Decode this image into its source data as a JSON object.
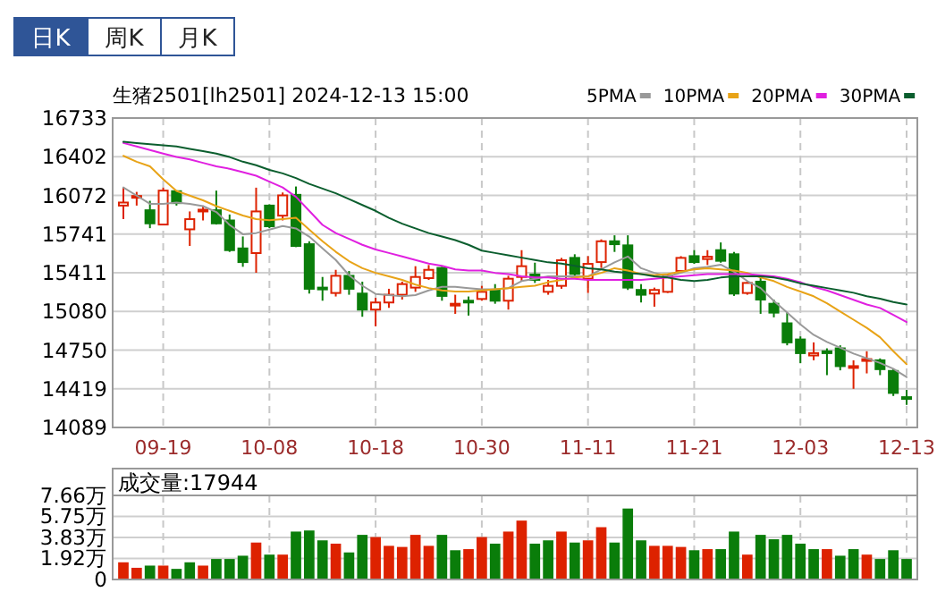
{
  "chart_data": [
    {
      "type": "candlestick",
      "title": "生猪2501[lh2501] 2024-12-13 15:00",
      "annotations": [
        "日K",
        "周K",
        "月K"
      ],
      "categories": [
        null,
        null,
        null,
        "09-19",
        null,
        null,
        null,
        null,
        null,
        null,
        null,
        "10-08",
        null,
        null,
        null,
        null,
        null,
        null,
        null,
        "10-18",
        null,
        null,
        null,
        null,
        null,
        null,
        null,
        "10-30",
        null,
        null,
        null,
        null,
        null,
        null,
        null,
        "11-11",
        null,
        null,
        null,
        null,
        null,
        null,
        null,
        "11-21",
        null,
        null,
        null,
        null,
        null,
        null,
        null,
        "12-03",
        null,
        null,
        null,
        null,
        null,
        null,
        null,
        "12-13"
      ],
      "ohlc": [
        [
          15985,
          16138,
          15869,
          16011
        ],
        [
          16052,
          16102,
          15985,
          16067
        ],
        [
          15945,
          16026,
          15792,
          15833
        ],
        [
          15823,
          16138,
          15818,
          16113
        ],
        [
          16108,
          16113,
          15985,
          16006
        ],
        [
          15782,
          15935,
          15640,
          15869
        ],
        [
          15935,
          15985,
          15858,
          15950
        ],
        [
          15945,
          16113,
          15823,
          15833
        ],
        [
          15858,
          15909,
          15589,
          15604
        ],
        [
          15619,
          15721,
          15462,
          15502
        ],
        [
          15579,
          16138,
          15411,
          15935
        ],
        [
          15985,
          15996,
          15792,
          15808
        ],
        [
          15899,
          16097,
          15858,
          16072
        ],
        [
          16077,
          16148,
          15630,
          15640
        ],
        [
          15655,
          15680,
          15233,
          15274
        ],
        [
          15284,
          15375,
          15172,
          15274
        ],
        [
          15238,
          15436,
          15208,
          15385
        ],
        [
          15385,
          15426,
          15223,
          15274
        ],
        [
          15233,
          15335,
          15035,
          15096
        ],
        [
          15096,
          15197,
          14953,
          15157
        ],
        [
          15157,
          15274,
          15111,
          15223
        ],
        [
          15223,
          15335,
          15182,
          15314
        ],
        [
          15284,
          15467,
          15248,
          15375
        ],
        [
          15365,
          15477,
          15350,
          15436
        ],
        [
          15452,
          15462,
          15172,
          15213
        ],
        [
          15136,
          15223,
          15060,
          15146
        ],
        [
          15172,
          15208,
          15045,
          15162
        ],
        [
          15187,
          15299,
          15172,
          15248
        ],
        [
          15264,
          15314,
          15146,
          15172
        ],
        [
          15172,
          15385,
          15096,
          15360
        ],
        [
          15375,
          15604,
          15335,
          15467
        ],
        [
          15396,
          15497,
          15324,
          15350
        ],
        [
          15248,
          15350,
          15223,
          15299
        ],
        [
          15299,
          15538,
          15274,
          15518
        ],
        [
          15538,
          15569,
          15365,
          15401
        ],
        [
          15360,
          15553,
          15238,
          15487
        ],
        [
          15502,
          15696,
          15452,
          15680
        ],
        [
          15680,
          15731,
          15589,
          15655
        ],
        [
          15645,
          15731,
          15264,
          15284
        ],
        [
          15264,
          15314,
          15157,
          15223
        ],
        [
          15233,
          15284,
          15121,
          15264
        ],
        [
          15248,
          15401,
          15238,
          15385
        ],
        [
          15426,
          15553,
          15416,
          15538
        ],
        [
          15553,
          15604,
          15487,
          15502
        ],
        [
          15528,
          15604,
          15477,
          15548
        ],
        [
          15604,
          15670,
          15497,
          15513
        ],
        [
          15569,
          15589,
          15213,
          15233
        ],
        [
          15238,
          15335,
          15223,
          15324
        ],
        [
          15335,
          15375,
          15060,
          15182
        ],
        [
          15146,
          15182,
          15030,
          15070
        ],
        [
          14979,
          15070,
          14791,
          14816
        ],
        [
          14841,
          14867,
          14638,
          14724
        ],
        [
          14704,
          14816,
          14663,
          14724
        ],
        [
          14740,
          14765,
          14536,
          14724
        ],
        [
          14765,
          14791,
          14577,
          14613
        ],
        [
          14602,
          14663,
          14419,
          14613
        ],
        [
          14663,
          14740,
          14551,
          14673
        ],
        [
          14663,
          14679,
          14536,
          14587
        ],
        [
          14572,
          14587,
          14358,
          14384
        ],
        [
          14348,
          14409,
          14282,
          14333
        ]
      ],
      "colors": [
        "#dd2200",
        "#dd2200",
        "#0a7d0a",
        "#dd2200",
        "#0a7d0a",
        "#dd2200",
        "#dd2200",
        "#0a7d0a",
        "#0a7d0a",
        "#0a7d0a",
        "#dd2200",
        "#0a7d0a",
        "#dd2200",
        "#0a7d0a",
        "#0a7d0a",
        "#0a7d0a",
        "#dd2200",
        "#0a7d0a",
        "#0a7d0a",
        "#dd2200",
        "#dd2200",
        "#dd2200",
        "#dd2200",
        "#dd2200",
        "#0a7d0a",
        "#dd2200",
        "#0a7d0a",
        "#dd2200",
        "#0a7d0a",
        "#dd2200",
        "#dd2200",
        "#0a7d0a",
        "#dd2200",
        "#dd2200",
        "#0a7d0a",
        "#dd2200",
        "#dd2200",
        "#0a7d0a",
        "#0a7d0a",
        "#0a7d0a",
        "#dd2200",
        "#dd2200",
        "#dd2200",
        "#0a7d0a",
        "#dd2200",
        "#0a7d0a",
        "#0a7d0a",
        "#dd2200",
        "#0a7d0a",
        "#0a7d0a",
        "#0a7d0a",
        "#0a7d0a",
        "#dd2200",
        "#0a7d0a",
        "#0a7d0a",
        "#dd2200",
        "#dd2200",
        "#0a7d0a",
        "#0a7d0a",
        "#0a7d0a"
      ],
      "series": [
        {
          "name": "5PMA",
          "type": "line",
          "color": "#999999",
          "values": [
            16140,
            16070,
            16000,
            16000,
            16010,
            16000,
            15980,
            15930,
            15820,
            15740,
            15750,
            15780,
            15810,
            15790,
            15720,
            15620,
            15520,
            15390,
            15300,
            15230,
            15220,
            15210,
            15220,
            15260,
            15290,
            15290,
            15280,
            15270,
            15270,
            15280,
            15340,
            15360,
            15380,
            15380,
            15380,
            15380,
            15440,
            15500,
            15550,
            15450,
            15410,
            15380,
            15410,
            15450,
            15460,
            15480,
            15420,
            15340,
            15280,
            15170,
            15070,
            14970,
            14880,
            14820,
            14770,
            14720,
            14680,
            14640,
            14590,
            14520
          ]
        },
        {
          "name": "10PMA",
          "type": "line",
          "color": "#e8a317",
          "values": [
            16410,
            16360,
            16320,
            16210,
            16110,
            16070,
            16030,
            15980,
            15940,
            15900,
            15870,
            15860,
            15870,
            15880,
            15780,
            15680,
            15590,
            15510,
            15450,
            15410,
            15380,
            15350,
            15310,
            15280,
            15260,
            15250,
            15250,
            15260,
            15270,
            15280,
            15290,
            15300,
            15330,
            15350,
            15370,
            15380,
            15410,
            15450,
            15430,
            15400,
            15390,
            15400,
            15420,
            15440,
            15450,
            15440,
            15430,
            15410,
            15370,
            15340,
            15290,
            15250,
            15210,
            15150,
            15080,
            15010,
            14940,
            14860,
            14740,
            14630
          ]
        },
        {
          "name": "20PMA",
          "type": "line",
          "color": "#e020e0",
          "values": [
            16520,
            16490,
            16460,
            16430,
            16400,
            16380,
            16350,
            16320,
            16300,
            16270,
            16240,
            16190,
            16140,
            16060,
            15940,
            15820,
            15750,
            15700,
            15650,
            15610,
            15580,
            15550,
            15520,
            15490,
            15470,
            15440,
            15430,
            15430,
            15410,
            15400,
            15380,
            15370,
            15370,
            15360,
            15360,
            15350,
            15350,
            15350,
            15350,
            15350,
            15360,
            15370,
            15380,
            15390,
            15400,
            15400,
            15400,
            15400,
            15390,
            15380,
            15360,
            15330,
            15290,
            15260,
            15220,
            15180,
            15140,
            15110,
            15050,
            14990
          ]
        },
        {
          "name": "30PMA",
          "type": "line",
          "color": "#0b5e2e",
          "values": [
            16530,
            16520,
            16510,
            16500,
            16490,
            16470,
            16450,
            16430,
            16400,
            16360,
            16330,
            16290,
            16260,
            16220,
            16170,
            16130,
            16090,
            16040,
            15990,
            15940,
            15880,
            15830,
            15790,
            15750,
            15720,
            15690,
            15650,
            15600,
            15580,
            15560,
            15540,
            15520,
            15500,
            15490,
            15470,
            15450,
            15440,
            15420,
            15410,
            15400,
            15380,
            15370,
            15350,
            15340,
            15350,
            15370,
            15380,
            15380,
            15380,
            15370,
            15350,
            15320,
            15300,
            15280,
            15260,
            15240,
            15210,
            15190,
            15160,
            15140
          ]
        }
      ],
      "ylim": [
        14089,
        16733
      ],
      "yticks": [
        14089,
        14419,
        14750,
        15080,
        15411,
        15741,
        16072,
        16402,
        16733
      ],
      "grid": true,
      "legend": "top right"
    },
    {
      "type": "bar",
      "title": "成交量:17944",
      "tick_labels": "y",
      "categories": [
        null,
        null,
        null,
        null,
        null,
        null,
        null,
        null,
        null,
        null,
        null,
        null,
        null,
        null,
        null,
        null,
        null,
        null,
        null,
        null,
        null,
        null,
        null,
        null,
        null,
        null,
        null,
        null,
        null,
        null,
        null,
        null,
        null,
        null,
        null,
        null,
        null,
        null,
        null,
        null,
        null,
        null,
        null,
        null,
        null,
        null,
        null,
        null,
        null,
        null,
        null,
        null,
        null,
        null,
        null,
        null,
        null,
        null,
        null,
        null
      ],
      "values": [
        1.5,
        1.0,
        1.2,
        1.2,
        0.9,
        1.5,
        1.2,
        1.8,
        1.8,
        2.1,
        3.3,
        2.2,
        2.2,
        4.3,
        4.4,
        3.5,
        3.2,
        2.4,
        4.0,
        3.8,
        3.0,
        2.9,
        4.0,
        3.0,
        4.0,
        2.6,
        2.7,
        3.8,
        3.2,
        4.3,
        5.3,
        3.2,
        3.5,
        4.3,
        3.3,
        3.5,
        4.7,
        3.3,
        6.4,
        3.5,
        3.0,
        3.0,
        2.9,
        2.6,
        2.7,
        2.7,
        4.3,
        2.2,
        4.0,
        3.6,
        4.0,
        3.2,
        2.7,
        2.7,
        2.1,
        2.7,
        2.2,
        1.8,
        2.6,
        1.8
      ],
      "colors": [
        "#dd2200",
        "#dd2200",
        "#0a7d0a",
        "#dd2200",
        "#0a7d0a",
        "#0a7d0a",
        "#dd2200",
        "#0a7d0a",
        "#0a7d0a",
        "#0a7d0a",
        "#dd2200",
        "#0a7d0a",
        "#dd2200",
        "#0a7d0a",
        "#0a7d0a",
        "#0a7d0a",
        "#dd2200",
        "#0a7d0a",
        "#0a7d0a",
        "#dd2200",
        "#dd2200",
        "#dd2200",
        "#dd2200",
        "#dd2200",
        "#0a7d0a",
        "#0a7d0a",
        "#dd2200",
        "#dd2200",
        "#0a7d0a",
        "#dd2200",
        "#dd2200",
        "#0a7d0a",
        "#0a7d0a",
        "#dd2200",
        "#0a7d0a",
        "#dd2200",
        "#dd2200",
        "#0a7d0a",
        "#0a7d0a",
        "#0a7d0a",
        "#dd2200",
        "#dd2200",
        "#dd2200",
        "#0a7d0a",
        "#dd2200",
        "#0a7d0a",
        "#0a7d0a",
        "#dd2200",
        "#0a7d0a",
        "#0a7d0a",
        "#0a7d0a",
        "#0a7d0a",
        "#0a7d0a",
        "#dd2200",
        "#0a7d0a",
        "#0a7d0a",
        "#dd2200",
        "#0a7d0a",
        "#0a7d0a",
        "#0a7d0a"
      ],
      "ylim": [
        0,
        7.66
      ],
      "yticks": [
        0,
        {
          "value": 1.92,
          "label": "1.92万"
        },
        {
          "value": 3.83,
          "label": "3.83万"
        },
        {
          "value": 5.75,
          "label": "5.75万"
        },
        {
          "value": 7.66,
          "label": "7.66万"
        }
      ],
      "grid": true
    }
  ]
}
